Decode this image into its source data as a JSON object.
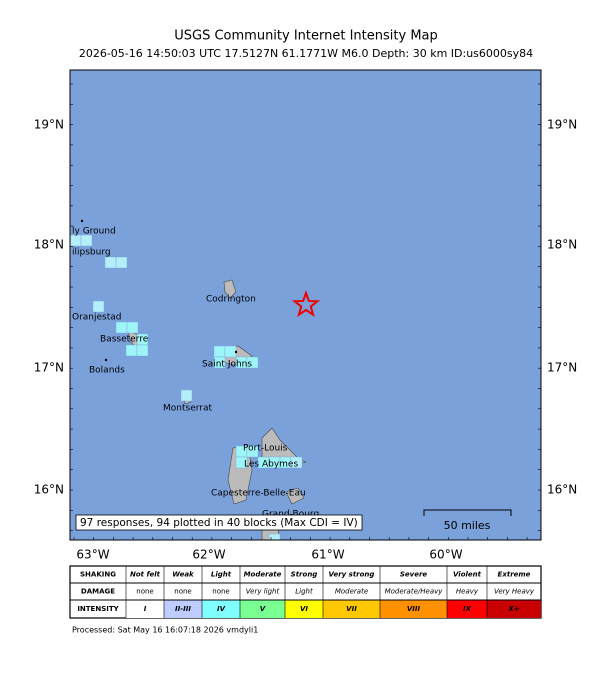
{
  "title": "USGS Community Internet Intensity Map",
  "subtitle": "2026-05-16 14:50:03 UTC 17.5127N 61.1771W M6.0 Depth: 30 km ID:us6000sy84",
  "map": {
    "lat_labels": [
      "19°N",
      "18°N",
      "17°N",
      "16°N"
    ],
    "lon_labels": [
      "63°W",
      "62°W",
      "61°W",
      "60°W"
    ],
    "places": [
      "ly Ground",
      "ilipsburg",
      "Codrington",
      "Oranjestad",
      "Basseterre",
      "Bolands",
      "Saint Johns",
      "Montserrat",
      "Port-Louis",
      "Les Abymes",
      "Capesterre-Belle-Eau",
      "Grand-Bourg"
    ],
    "summary": "97 responses, 94 plotted in 40 blocks (Max CDI = IV)",
    "scale_label": "50 miles"
  },
  "legend": {
    "row_labels": [
      "SHAKING",
      "DAMAGE",
      "INTENSITY"
    ],
    "shaking": [
      "Not felt",
      "Weak",
      "Light",
      "Moderate",
      "Strong",
      "Very strong",
      "Severe",
      "Violent",
      "Extreme"
    ],
    "damage": [
      "none",
      "none",
      "none",
      "Very light",
      "Light",
      "Moderate",
      "Moderate/Heavy",
      "Heavy",
      "Very Heavy"
    ],
    "intensity": [
      "I",
      "II-III",
      "IV",
      "V",
      "VI",
      "VII",
      "VIII",
      "IX",
      "X+"
    ],
    "intensity_colors": [
      "#ffffff",
      "#bfccff",
      "#80ffff",
      "#7aff93",
      "#ffff00",
      "#ffc800",
      "#ff9100",
      "#ff0000",
      "#c80000"
    ]
  },
  "footer": "Processed: Sat May 16 16:07:18 2026 vmdyli1"
}
